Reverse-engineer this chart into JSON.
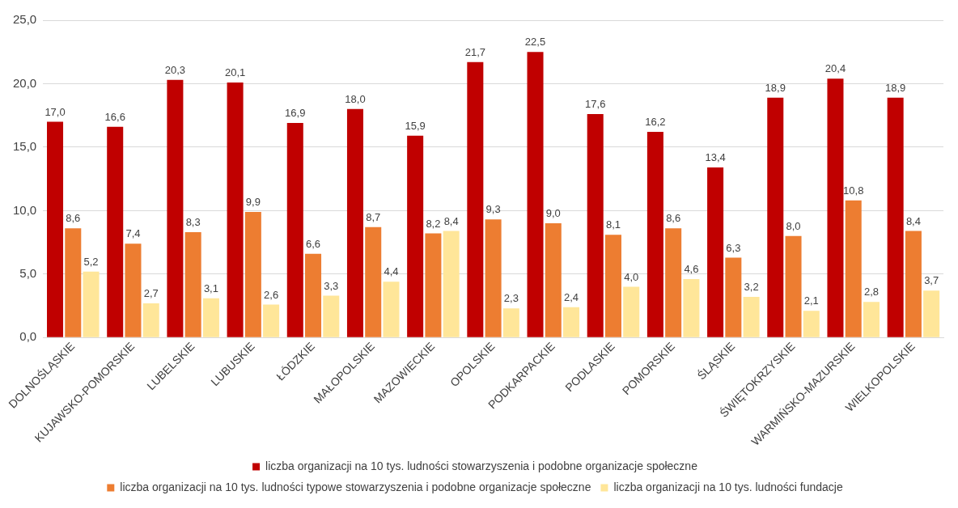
{
  "chart_data": {
    "type": "bar",
    "categories": [
      "DOLNOŚLĄSKIE",
      "KUJAWSKO-POMORSKIE",
      "LUBELSKIE",
      "LUBUSKIE",
      "ŁÓDZKIE",
      "MAŁOPOLSKIE",
      "MAZOWIECKIE",
      "OPOLSKIE",
      "PODKARPACKIE",
      "PODLASKIE",
      "POMORSKIE",
      "ŚLĄSKIE",
      "ŚWIĘTOKRZYSKIE",
      "WARMIŃSKO-MAZURSKIE",
      "WIELKOPOLSKIE"
    ],
    "series": [
      {
        "name": "liczba organizacji na 10 tys. ludności stowarzyszenia i podobne organizacje społeczne",
        "color": "#c00000",
        "values": [
          17.0,
          16.6,
          20.3,
          20.1,
          16.9,
          18.0,
          15.9,
          21.7,
          22.5,
          17.6,
          16.2,
          13.4,
          18.9,
          20.4,
          18.9
        ],
        "value_labels": [
          "17,0",
          "16,6",
          "20,3",
          "20,1",
          "16,9",
          "18,0",
          "15,9",
          "21,7",
          "22,5",
          "17,6",
          "16,2",
          "13,4",
          "18,9",
          "20,4",
          "18,9"
        ]
      },
      {
        "name": "liczba organizacji na 10 tys. ludności typowe stowarzyszenia i podobne organizacje społeczne",
        "color": "#ed7d31",
        "values": [
          8.6,
          7.4,
          8.3,
          9.9,
          6.6,
          8.7,
          8.2,
          9.3,
          9.0,
          8.1,
          8.6,
          6.3,
          8.0,
          10.8,
          8.4
        ],
        "value_labels": [
          "8,6",
          "7,4",
          "8,3",
          "9,9",
          "6,6",
          "8,7",
          "8,2",
          "9,3",
          "9,0",
          "8,1",
          "8,6",
          "6,3",
          "8,0",
          "10,8",
          "8,4"
        ]
      },
      {
        "name": "liczba organizacji na 10 tys. ludności fundacje",
        "color": "#ffe699",
        "values": [
          5.2,
          2.7,
          3.1,
          2.6,
          3.3,
          4.4,
          8.4,
          2.3,
          2.4,
          4.0,
          4.6,
          3.2,
          2.1,
          2.8,
          3.7
        ],
        "value_labels": [
          "5,2",
          "2,7",
          "3,1",
          "2,6",
          "3,3",
          "4,4",
          "8,4",
          "2,3",
          "2,4",
          "4,0",
          "4,6",
          "3,2",
          "2,1",
          "2,8",
          "3,7"
        ]
      }
    ],
    "ylim": [
      0,
      25
    ],
    "yticks": [
      {
        "value": 0,
        "label": "0,0"
      },
      {
        "value": 5,
        "label": "5,0"
      },
      {
        "value": 10,
        "label": "10,0"
      },
      {
        "value": 15,
        "label": "15,0"
      },
      {
        "value": 20,
        "label": "20,0"
      },
      {
        "value": 25,
        "label": "25,0"
      }
    ],
    "grid": "y",
    "legend": "bottom"
  }
}
